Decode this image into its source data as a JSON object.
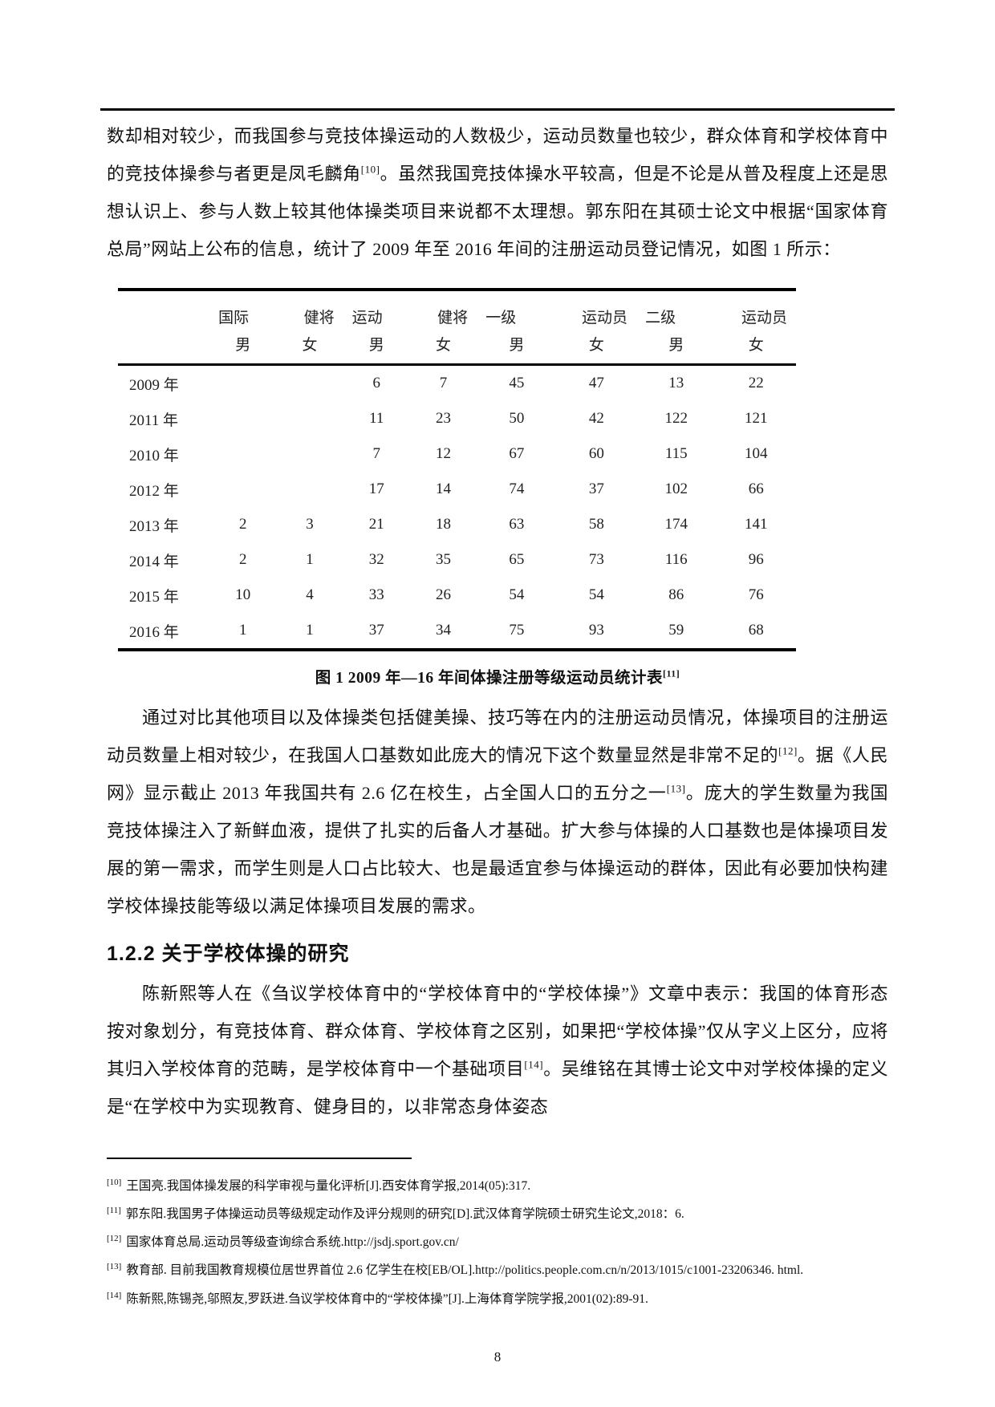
{
  "page": {
    "number": "8"
  },
  "paragraphs": {
    "p1": {
      "segments": [
        {
          "t": "数却相对较少，而我国参与竞技体操运动的人数极少，运动员数量也较少，群众体育和学校体育中的竞技体操参与者更是凤毛麟角"
        },
        {
          "s": "[10]"
        },
        {
          "t": "。虽然我国竞技体操水平较高，但是不论是从普及程度上还是思想认识上、参与人数上较其他体操类项目来说都不太理想。郭东阳在其硕士论文中根据“国家体育总局”网站上公布的信息，统计了 2009 年至 2016 年间的注册运动员登记情况，如图 1 所示："
        }
      ]
    },
    "p2": {
      "segments": [
        {
          "t": "通过对比其他项目以及体操类包括健美操、技巧等在内的注册运动员情况，体操项目的注册运动员数量上相对较少，在我国人口基数如此庞大的情况下这个数量显然是非常不足的"
        },
        {
          "s": "[12]"
        },
        {
          "t": "。据《人民网》显示截止 2013 年我国共有 2.6 亿在校生，占全国人口的五分之一"
        },
        {
          "s": "[13]"
        },
        {
          "t": "。庞大的学生数量为我国竞技体操注入了新鲜血液，提供了扎实的后备人才基础。扩大参与体操的人口基数也是体操项目发展的第一需求，而学生则是人口占比较大、也是最适宜参与体操运动的群体，因此有必要加快构建学校体操技能等级以满足体操项目发展的需求。"
        }
      ]
    },
    "p3": {
      "segments": [
        {
          "t": "陈新熙等人在《刍议学校体育中的“学校体育中的“学校体操”》文章中表示：我国的体育形态按对象划分，有竞技体育、群众体育、学校体育之区别，如果把“学校体操”仅从字义上区分，应将其归入学校体育的范畴，是学校体育中一个基础项目"
        },
        {
          "s": "[14]"
        },
        {
          "t": "。吴维铭在其博士论文中对学校体操的定义是“在学校中为实现教育、健身目的，以非常态身体姿态"
        }
      ]
    }
  },
  "section_heading": "1.2.2 关于学校体操的研究",
  "figure": {
    "caption_segments": [
      {
        "t": "图 1 2009 年—16 年间体操注册等级运动员统计表"
      },
      {
        "s": "[11]"
      }
    ],
    "table": {
      "groups": [
        [
          "国际",
          "健将"
        ],
        [
          "运动",
          "健将"
        ],
        [
          "一级",
          "运动员"
        ],
        [
          "二级",
          "运动员"
        ]
      ],
      "sub_headers": [
        "男",
        "女",
        "男",
        "女",
        "男",
        "女",
        "男",
        "女"
      ],
      "rows": [
        {
          "year": "2009 年",
          "values": [
            "",
            "",
            "6",
            "7",
            "45",
            "47",
            "13",
            "22"
          ]
        },
        {
          "year": "2011 年",
          "values": [
            "",
            "",
            "11",
            "23",
            "50",
            "42",
            "122",
            "121"
          ]
        },
        {
          "year": "2010 年",
          "values": [
            "",
            "",
            "7",
            "12",
            "67",
            "60",
            "115",
            "104"
          ]
        },
        {
          "year": "2012 年",
          "values": [
            "",
            "",
            "17",
            "14",
            "74",
            "37",
            "102",
            "66"
          ]
        },
        {
          "year": "2013 年",
          "values": [
            "2",
            "3",
            "21",
            "18",
            "63",
            "58",
            "174",
            "141"
          ]
        },
        {
          "year": "2014 年",
          "values": [
            "2",
            "1",
            "32",
            "35",
            "65",
            "73",
            "116",
            "96"
          ]
        },
        {
          "year": "2015 年",
          "values": [
            "10",
            "4",
            "33",
            "26",
            "54",
            "54",
            "86",
            "76"
          ]
        },
        {
          "year": "2016 年",
          "values": [
            "1",
            "1",
            "37",
            "34",
            "75",
            "93",
            "59",
            "68"
          ]
        }
      ]
    }
  },
  "footnotes": [
    {
      "marker": "[10]",
      "text": "王国亮.我国体操发展的科学审视与量化评析[J].西安体育学报,2014(05):317."
    },
    {
      "marker": "[11]",
      "text": "郭东阳.我国男子体操运动员等级规定动作及评分规则的研究[D].武汉体育学院硕士研究生论文,2018：6."
    },
    {
      "marker": "[12]",
      "text": "国家体育总局.运动员等级查询综合系统.http://jsdj.sport.gov.cn/"
    },
    {
      "marker": "[13]",
      "text": "教育部. 目前我国教育规模位居世界首位 2.6 亿学生在校[EB/OL].http://politics.people.com.cn/n/2013/1015/c1001-23206346. html."
    },
    {
      "marker": "[14]",
      "text": "陈新熙,陈锡尧,邬照友,罗跃进.刍议学校体育中的“学校体操”[J].上海体育学院学报,2001(02):89-91."
    }
  ]
}
